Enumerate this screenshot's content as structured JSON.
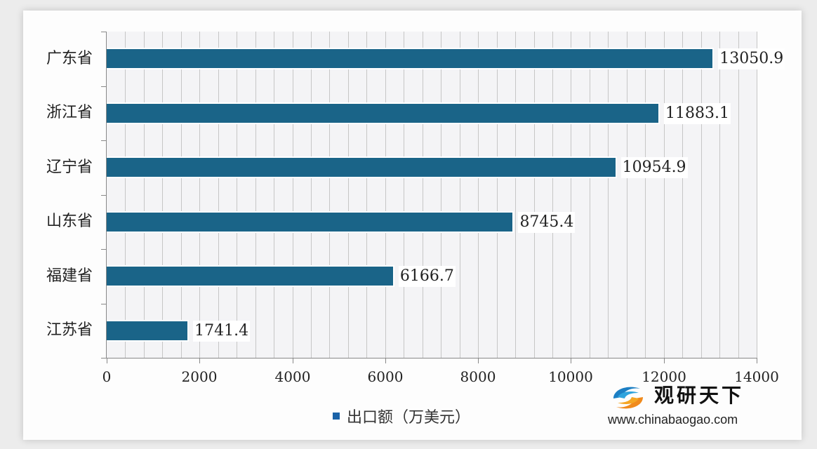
{
  "chart_data": {
    "type": "bar",
    "orientation": "horizontal",
    "title": "",
    "categories": [
      "广东省",
      "浙江省",
      "辽宁省",
      "山东省",
      "福建省",
      "江苏省"
    ],
    "series": [
      {
        "name": "出口额（万美元）",
        "values": [
          13050.9,
          11883.1,
          10954.9,
          8745.4,
          6166.7,
          1741.4
        ],
        "color": "#1a6488"
      }
    ],
    "value_labels": [
      "13050.9",
      "11883.1",
      "10954.9",
      "8745.4",
      "6166.7",
      "1741.4"
    ],
    "xlabel": "",
    "ylabel": "",
    "xlim": [
      0,
      14000
    ],
    "x_ticks": [
      "0",
      "2000",
      "4000",
      "6000",
      "8000",
      "10000",
      "12000",
      "14000"
    ],
    "grid": {
      "vertical": true,
      "minor_step": 400
    },
    "legend": {
      "position": "bottom",
      "entries": [
        "出口额（万美元）"
      ]
    }
  },
  "legend": {
    "label": "出口额（万美元）",
    "color": "#1a63a8"
  },
  "watermark": {
    "name": "观研天下",
    "url": "www.chinabaogao.com"
  }
}
